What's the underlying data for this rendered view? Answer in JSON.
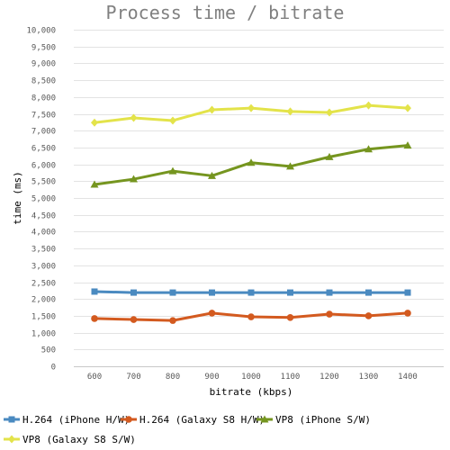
{
  "chart_data": {
    "type": "line",
    "title": "Process time / bitrate",
    "xlabel": "bitrate (kbps)",
    "ylabel": "time (ms)",
    "categories": [
      "600",
      "700",
      "800",
      "900",
      "1000",
      "1100",
      "1200",
      "1300",
      "1400"
    ],
    "y_tick_labels": [
      "0",
      "500",
      "1,000",
      "1,500",
      "2,000",
      "2,500",
      "3,000",
      "3,500",
      "4,000",
      "4,500",
      "5,000",
      "5,500",
      "6,000",
      "6,500",
      "7,000",
      "7,500",
      "8,000",
      "8,500",
      "9,000",
      "9,500",
      "10,000"
    ],
    "ylim": [
      0,
      10000
    ],
    "grid": true,
    "legend_position": "bottom",
    "series": [
      {
        "name": "H.264 (iPhone H/W)",
        "color": "#4a8ac0",
        "marker": "square",
        "values": [
          2220,
          2190,
          2190,
          2190,
          2190,
          2190,
          2190,
          2190,
          2190
        ]
      },
      {
        "name": "H.264 (Galaxy S8 H/W)",
        "color": "#d35a1f",
        "marker": "circle",
        "values": [
          1420,
          1390,
          1360,
          1580,
          1470,
          1450,
          1550,
          1500,
          1580
        ]
      },
      {
        "name": "VP8 (iPhone S/W)",
        "color": "#75951f",
        "marker": "triangle",
        "values": [
          5400,
          5560,
          5800,
          5660,
          6050,
          5940,
          6220,
          6450,
          6560
        ]
      },
      {
        "name": "VP8 (Galaxy S8 S/W)",
        "color": "#e3e34a",
        "marker": "diamond",
        "values": [
          7240,
          7380,
          7300,
          7620,
          7670,
          7570,
          7540,
          7750,
          7670
        ]
      }
    ]
  }
}
